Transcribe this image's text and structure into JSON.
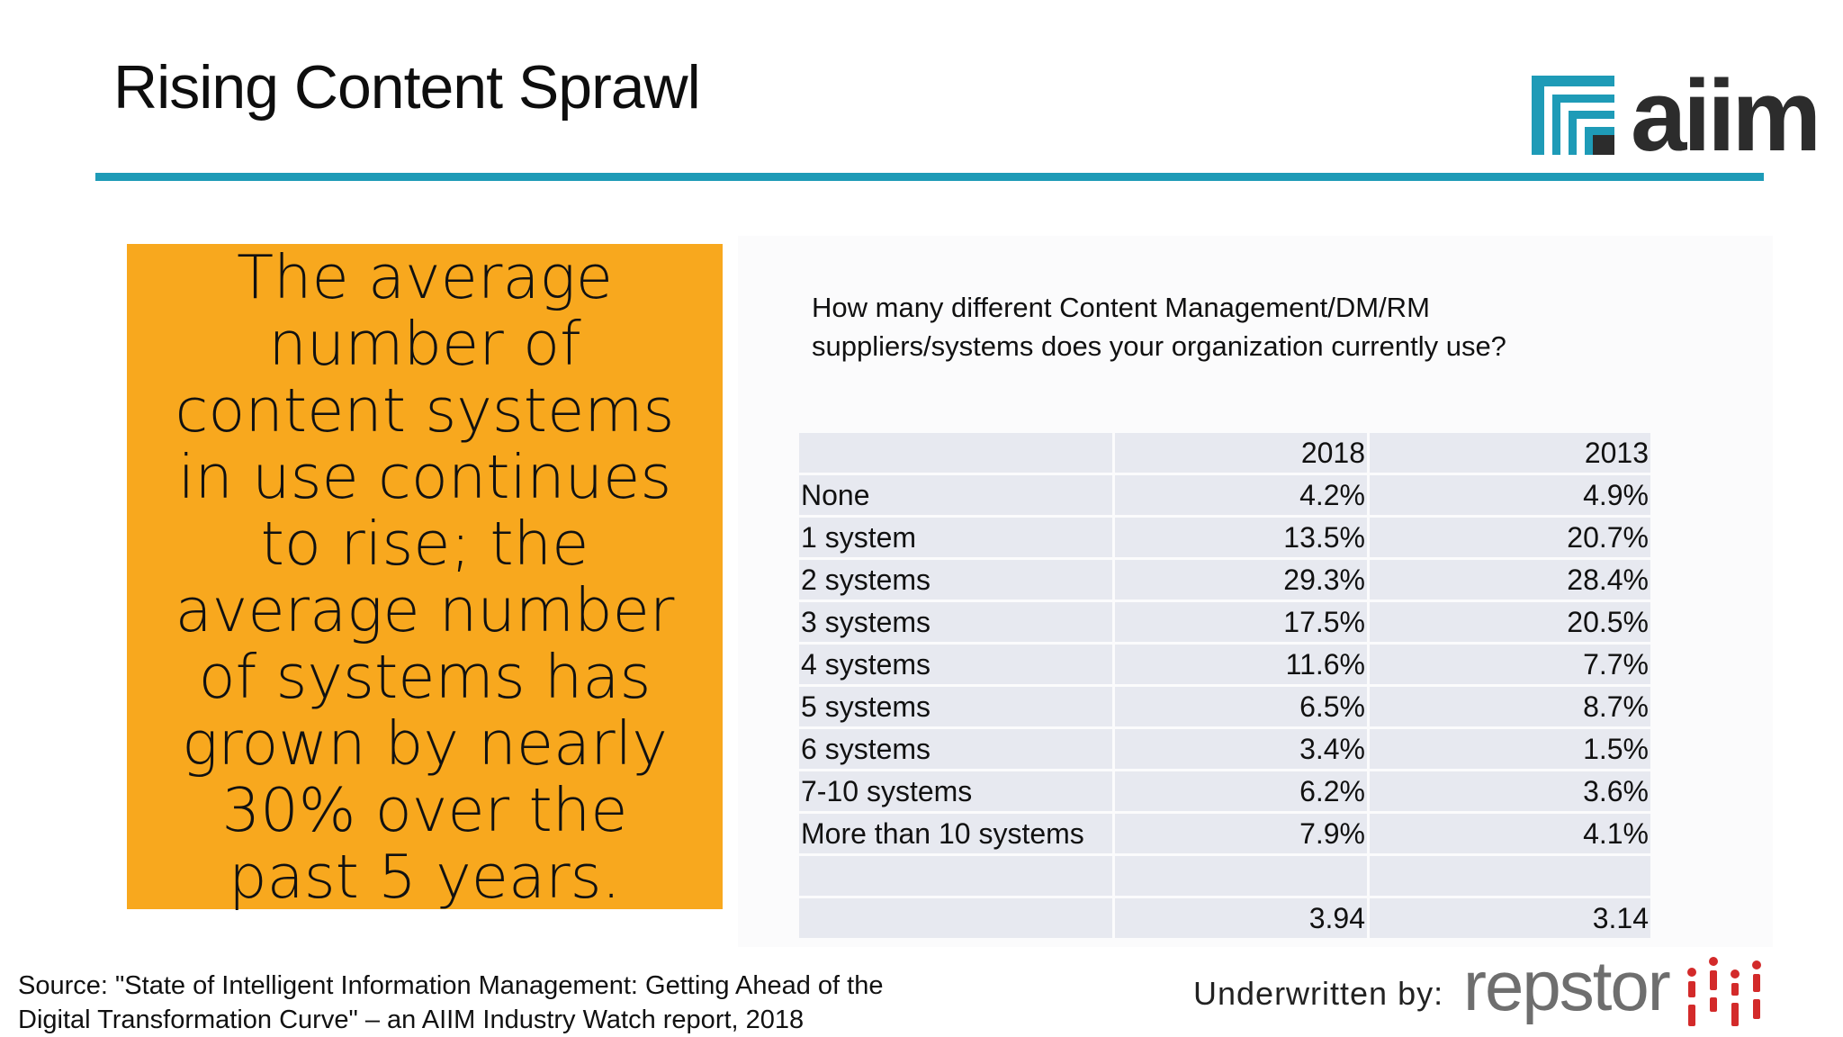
{
  "slide": {
    "title": "Rising Content Sprawl"
  },
  "logos": {
    "aiim": "aiim",
    "repstor": "repstor"
  },
  "callout": {
    "text": "The average number of content systems in use continues to rise; the average number of systems has grown by nearly 30% over the past 5 years."
  },
  "question": {
    "line1": "How many different Content Management/DM/RM",
    "line2": "suppliers/systems does your organization currently use?"
  },
  "table": {
    "headers": [
      "",
      "2018",
      "2013"
    ],
    "rows": [
      [
        "None",
        "4.2%",
        "4.9%"
      ],
      [
        "1 system",
        "13.5%",
        "20.7%"
      ],
      [
        "2 systems",
        "29.3%",
        "28.4%"
      ],
      [
        "3 systems",
        "17.5%",
        "20.5%"
      ],
      [
        "4 systems",
        "11.6%",
        "7.7%"
      ],
      [
        "5 systems",
        "6.5%",
        "8.7%"
      ],
      [
        "6 systems",
        "3.4%",
        "1.5%"
      ],
      [
        "7-10 systems",
        "6.2%",
        "3.6%"
      ],
      [
        "More than 10 systems",
        "7.9%",
        "4.1%"
      ],
      [
        "",
        "",
        ""
      ],
      [
        "",
        "3.94",
        "3.14"
      ]
    ]
  },
  "footer": {
    "source_line1": "Source: \"State of Intelligent Information Management: Getting Ahead of the",
    "source_line2": "Digital Transformation Curve\" – an AIIM Industry Watch report, 2018",
    "underwritten": "Underwritten by:"
  },
  "colors": {
    "accent_rule": "#1e9bb7",
    "callout_bg": "#f8a81e",
    "table_cell": "#e7e9f0",
    "repstor_red": "#d32a2a"
  }
}
